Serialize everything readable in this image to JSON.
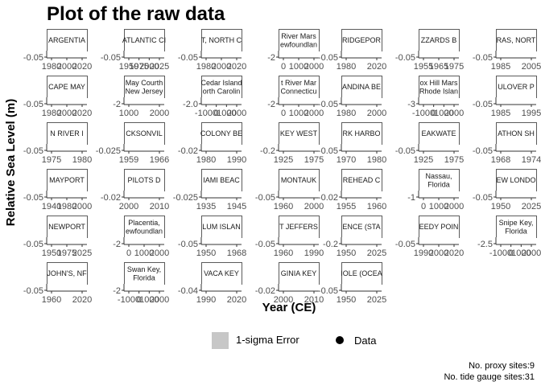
{
  "chart_data": {
    "type": "scatter",
    "title": "Plot of the raw data",
    "xlabel": "Year (CE)",
    "ylabel": "Relative Sea Level (m)",
    "legend": {
      "position": "bottom",
      "items": [
        {
          "label": "1-sigma Error",
          "kind": "ribbon",
          "color": "#c7c7c7"
        },
        {
          "label": "Data",
          "kind": "point",
          "color": "#000000"
        }
      ]
    },
    "caption": [
      "No. proxy sites:9",
      "No. tide gauge sites:31"
    ],
    "panels": [
      {
        "strip": [
          "ARGENTIA"
        ],
        "x_ticks": [
          "1980",
          "2000",
          "2020"
        ],
        "y_ticks": [
          "-0.05"
        ]
      },
      {
        "strip": [
          "ATLANTIC CI"
        ],
        "x_ticks": [
          "1950",
          "1975",
          "2000",
          "2025"
        ],
        "y_ticks": [
          "-0.05"
        ]
      },
      {
        "strip": [
          "T, NORTH C"
        ],
        "x_ticks": [
          "1980",
          "2000",
          "2020"
        ],
        "y_ticks": [
          "-0.05"
        ]
      },
      {
        "strip": [
          "River Mars",
          "ewfoundlan"
        ],
        "x_ticks": [
          "0",
          "1000",
          "2000"
        ],
        "y_ticks": [
          "-2"
        ]
      },
      {
        "strip": [
          "RIDGEPOR"
        ],
        "x_ticks": [
          "1980",
          "2020"
        ],
        "y_ticks": [
          "-0.05"
        ]
      },
      {
        "strip": [
          "ZZARDS B"
        ],
        "x_ticks": [
          "1955",
          "1965",
          "1975"
        ],
        "y_ticks": [
          "-0.05"
        ]
      },
      {
        "strip": [
          "RAS, NORT"
        ],
        "x_ticks": [
          "1985",
          "2005"
        ],
        "y_ticks": [
          "-0.05"
        ]
      },
      {
        "strip": [
          "CAPE MAY"
        ],
        "x_ticks": [
          "1980",
          "2000",
          "2020"
        ],
        "y_ticks": [
          "-0.05"
        ]
      },
      {
        "strip": [
          "May Courth",
          "New Jersey"
        ],
        "x_ticks": [
          "1000",
          "2000"
        ],
        "y_ticks": [
          "-2"
        ]
      },
      {
        "strip": [
          "Cedar Island",
          "orth Carolin"
        ],
        "x_ticks": [
          "-1000",
          "0",
          "1000",
          "2000"
        ],
        "y_ticks": [
          "-2.0"
        ]
      },
      {
        "strip": [
          "t River Mar",
          "Connecticu"
        ],
        "x_ticks": [
          "0",
          "1000",
          "2000"
        ],
        "y_ticks": [
          "-2"
        ]
      },
      {
        "strip": [
          "ANDINA BE"
        ],
        "x_ticks": [
          "1980",
          "2000"
        ],
        "y_ticks": [
          "-0.05"
        ]
      },
      {
        "strip": [
          "ox Hill Mars",
          "Rhode Islan"
        ],
        "x_ticks": [
          "-1000",
          "0",
          "1000",
          "2000"
        ],
        "y_ticks": [
          "-3"
        ]
      },
      {
        "strip": [
          "ULOVER P"
        ],
        "x_ticks": [
          "1985",
          "1995"
        ],
        "y_ticks": [
          "-0.05"
        ]
      },
      {
        "strip": [
          "N RIVER I"
        ],
        "x_ticks": [
          "1975",
          "1980"
        ],
        "y_ticks": [
          "-0.05"
        ]
      },
      {
        "strip": [
          "CKSONVIL"
        ],
        "x_ticks": [
          "1959",
          "1966"
        ],
        "y_ticks": [
          "-0.025"
        ]
      },
      {
        "strip": [
          "COLONY BE"
        ],
        "x_ticks": [
          "1980",
          "1990"
        ],
        "y_ticks": [
          "-0.02"
        ]
      },
      {
        "strip": [
          "KEY WEST"
        ],
        "x_ticks": [
          "1925",
          "1975"
        ],
        "y_ticks": [
          "-0.2"
        ]
      },
      {
        "strip": [
          "RK HARBO"
        ],
        "x_ticks": [
          "1970",
          "1980"
        ],
        "y_ticks": [
          "-0.05"
        ]
      },
      {
        "strip": [
          "EAKWATE"
        ],
        "x_ticks": [
          "1925",
          "1975"
        ],
        "y_ticks": [
          "-0.05"
        ]
      },
      {
        "strip": [
          "ATHON SH"
        ],
        "x_ticks": [
          "1968",
          "1974"
        ],
        "y_ticks": [
          "-0.05"
        ]
      },
      {
        "strip": [
          "MAYPORT"
        ],
        "x_ticks": [
          "1940",
          "1980",
          "2000"
        ],
        "y_ticks": [
          "-0.05"
        ]
      },
      {
        "strip": [
          "PILOTS D"
        ],
        "x_ticks": [
          "2000",
          "2010"
        ],
        "y_ticks": [
          "-0.02"
        ]
      },
      {
        "strip": [
          "IAMI BEAC"
        ],
        "x_ticks": [
          "1935",
          "1945"
        ],
        "y_ticks": [
          "-0.025"
        ]
      },
      {
        "strip": [
          "MONTAUK"
        ],
        "x_ticks": [
          "1960",
          "2000"
        ],
        "y_ticks": [
          "-0.05"
        ]
      },
      {
        "strip": [
          "REHEAD C"
        ],
        "x_ticks": [
          "1955",
          "1960"
        ],
        "y_ticks": [
          "-0.02"
        ]
      },
      {
        "strip": [
          "Nassau,",
          "Florida"
        ],
        "x_ticks": [
          "0",
          "1000",
          "2000"
        ],
        "y_ticks": [
          "-1"
        ]
      },
      {
        "strip": [
          "EW LONDO"
        ],
        "x_ticks": [
          "1950",
          "2025"
        ],
        "y_ticks": [
          "-0.05"
        ]
      },
      {
        "strip": [
          "NEWPORT"
        ],
        "x_ticks": [
          "1950",
          "1975",
          "2025"
        ],
        "y_ticks": [
          "-0.05"
        ]
      },
      {
        "strip": [
          "Placentia,",
          "ewfoundlan"
        ],
        "x_ticks": [
          "0",
          "1000",
          "2000"
        ],
        "y_ticks": [
          "-2"
        ]
      },
      {
        "strip": [
          "LUM ISLAN"
        ],
        "x_ticks": [
          "1950",
          "1968"
        ],
        "y_ticks": [
          "-0.05"
        ]
      },
      {
        "strip": [
          "T JEFFERS"
        ],
        "x_ticks": [
          "1960",
          "1990"
        ],
        "y_ticks": [
          "-0.05"
        ]
      },
      {
        "strip": [
          "ENCE (STA"
        ],
        "x_ticks": [
          "1950",
          "2025"
        ],
        "y_ticks": [
          "-0.2"
        ]
      },
      {
        "strip": [
          "EEDY POIN"
        ],
        "x_ticks": [
          "1990",
          "2000",
          "2020"
        ],
        "y_ticks": [
          "-0.05"
        ]
      },
      {
        "strip": [
          "Snipe Key,",
          "Florida"
        ],
        "x_ticks": [
          "-1000",
          "0",
          "1000",
          "2000"
        ],
        "y_ticks": [
          "-2.5"
        ]
      },
      {
        "strip": [
          "JOHN'S, NF"
        ],
        "x_ticks": [
          "1960",
          "2020"
        ],
        "y_ticks": [
          "-0.05"
        ]
      },
      {
        "strip": [
          "Swan Key,",
          "Florida"
        ],
        "x_ticks": [
          "-1000",
          "0",
          "1000",
          "2000"
        ],
        "y_ticks": [
          "-2"
        ]
      },
      {
        "strip": [
          "VACA KEY"
        ],
        "x_ticks": [
          "1990",
          "2020"
        ],
        "y_ticks": [
          "-0.04"
        ]
      },
      {
        "strip": [
          "GINIA KEY"
        ],
        "x_ticks": [
          "2000",
          "2010"
        ],
        "y_ticks": [
          "-0.02"
        ]
      },
      {
        "strip": [
          "IOLE (OCEA"
        ],
        "x_ticks": [
          "1950",
          "2025"
        ],
        "y_ticks": [
          "-0.05"
        ]
      }
    ]
  }
}
